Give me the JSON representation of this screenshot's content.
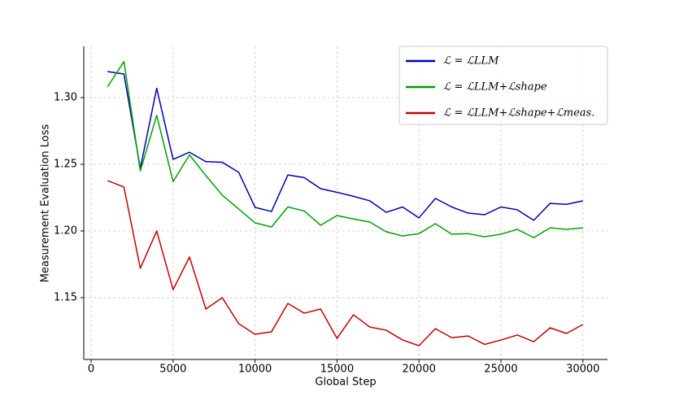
{
  "chart_data": {
    "type": "line",
    "xlabel": "Global Step",
    "ylabel": "Measurement Evaluation Loss",
    "x": [
      1000,
      2000,
      3000,
      4000,
      5000,
      6000,
      7000,
      8000,
      9000,
      10000,
      11000,
      12000,
      13000,
      14000,
      15000,
      16000,
      17000,
      18000,
      19000,
      20000,
      21000,
      22000,
      23000,
      24000,
      25000,
      26000,
      27000,
      28000,
      29000,
      30000
    ],
    "series": [
      {
        "name": "ℒ = ℒLLM",
        "color": "#0000b4",
        "values": [
          1.3195,
          1.3177,
          1.247,
          1.307,
          1.2537,
          1.259,
          1.252,
          1.2515,
          1.244,
          1.2177,
          1.2146,
          1.242,
          1.24,
          1.2317,
          1.229,
          1.226,
          1.2226,
          1.214,
          1.218,
          1.2098,
          1.2244,
          1.218,
          1.2134,
          1.2122,
          1.218,
          1.2159,
          1.208,
          1.2207,
          1.22,
          1.2226
        ]
      },
      {
        "name": "ℒ = ℒLLM+ℒshape",
        "color": "#00a000",
        "values": [
          1.308,
          1.327,
          1.245,
          1.2866,
          1.237,
          1.257,
          1.2415,
          1.2268,
          1.2165,
          1.2061,
          1.203,
          1.218,
          1.215,
          1.2043,
          1.2116,
          1.209,
          1.2067,
          1.1994,
          1.1963,
          1.198,
          1.2055,
          1.1976,
          1.198,
          1.1957,
          1.1976,
          1.2012,
          1.195,
          1.2024,
          1.2012,
          1.2024
        ]
      },
      {
        "name": "ℒ = ℒLLM+ℒshape+ℒmeas.",
        "color": "#c80000",
        "values": [
          1.2378,
          1.233,
          1.172,
          1.2,
          1.156,
          1.1805,
          1.1415,
          1.15,
          1.1305,
          1.1226,
          1.1244,
          1.1457,
          1.1384,
          1.1415,
          1.1195,
          1.1372,
          1.128,
          1.1256,
          1.1183,
          1.114,
          1.1268,
          1.12,
          1.1213,
          1.115,
          1.1183,
          1.122,
          1.117,
          1.1274,
          1.1232,
          1.1299
        ]
      }
    ],
    "xlim": [
      -450,
      31500
    ],
    "ylim": [
      1.1037,
      1.3384
    ],
    "xticks": [
      0,
      5000,
      10000,
      15000,
      20000,
      25000,
      30000
    ],
    "yticks": [
      1.15,
      {
        "value": 1.2,
        "label": "1.20"
      },
      1.25,
      {
        "value": 1.3,
        "label": "1.30"
      }
    ],
    "grid": true,
    "legend": "upper right"
  }
}
